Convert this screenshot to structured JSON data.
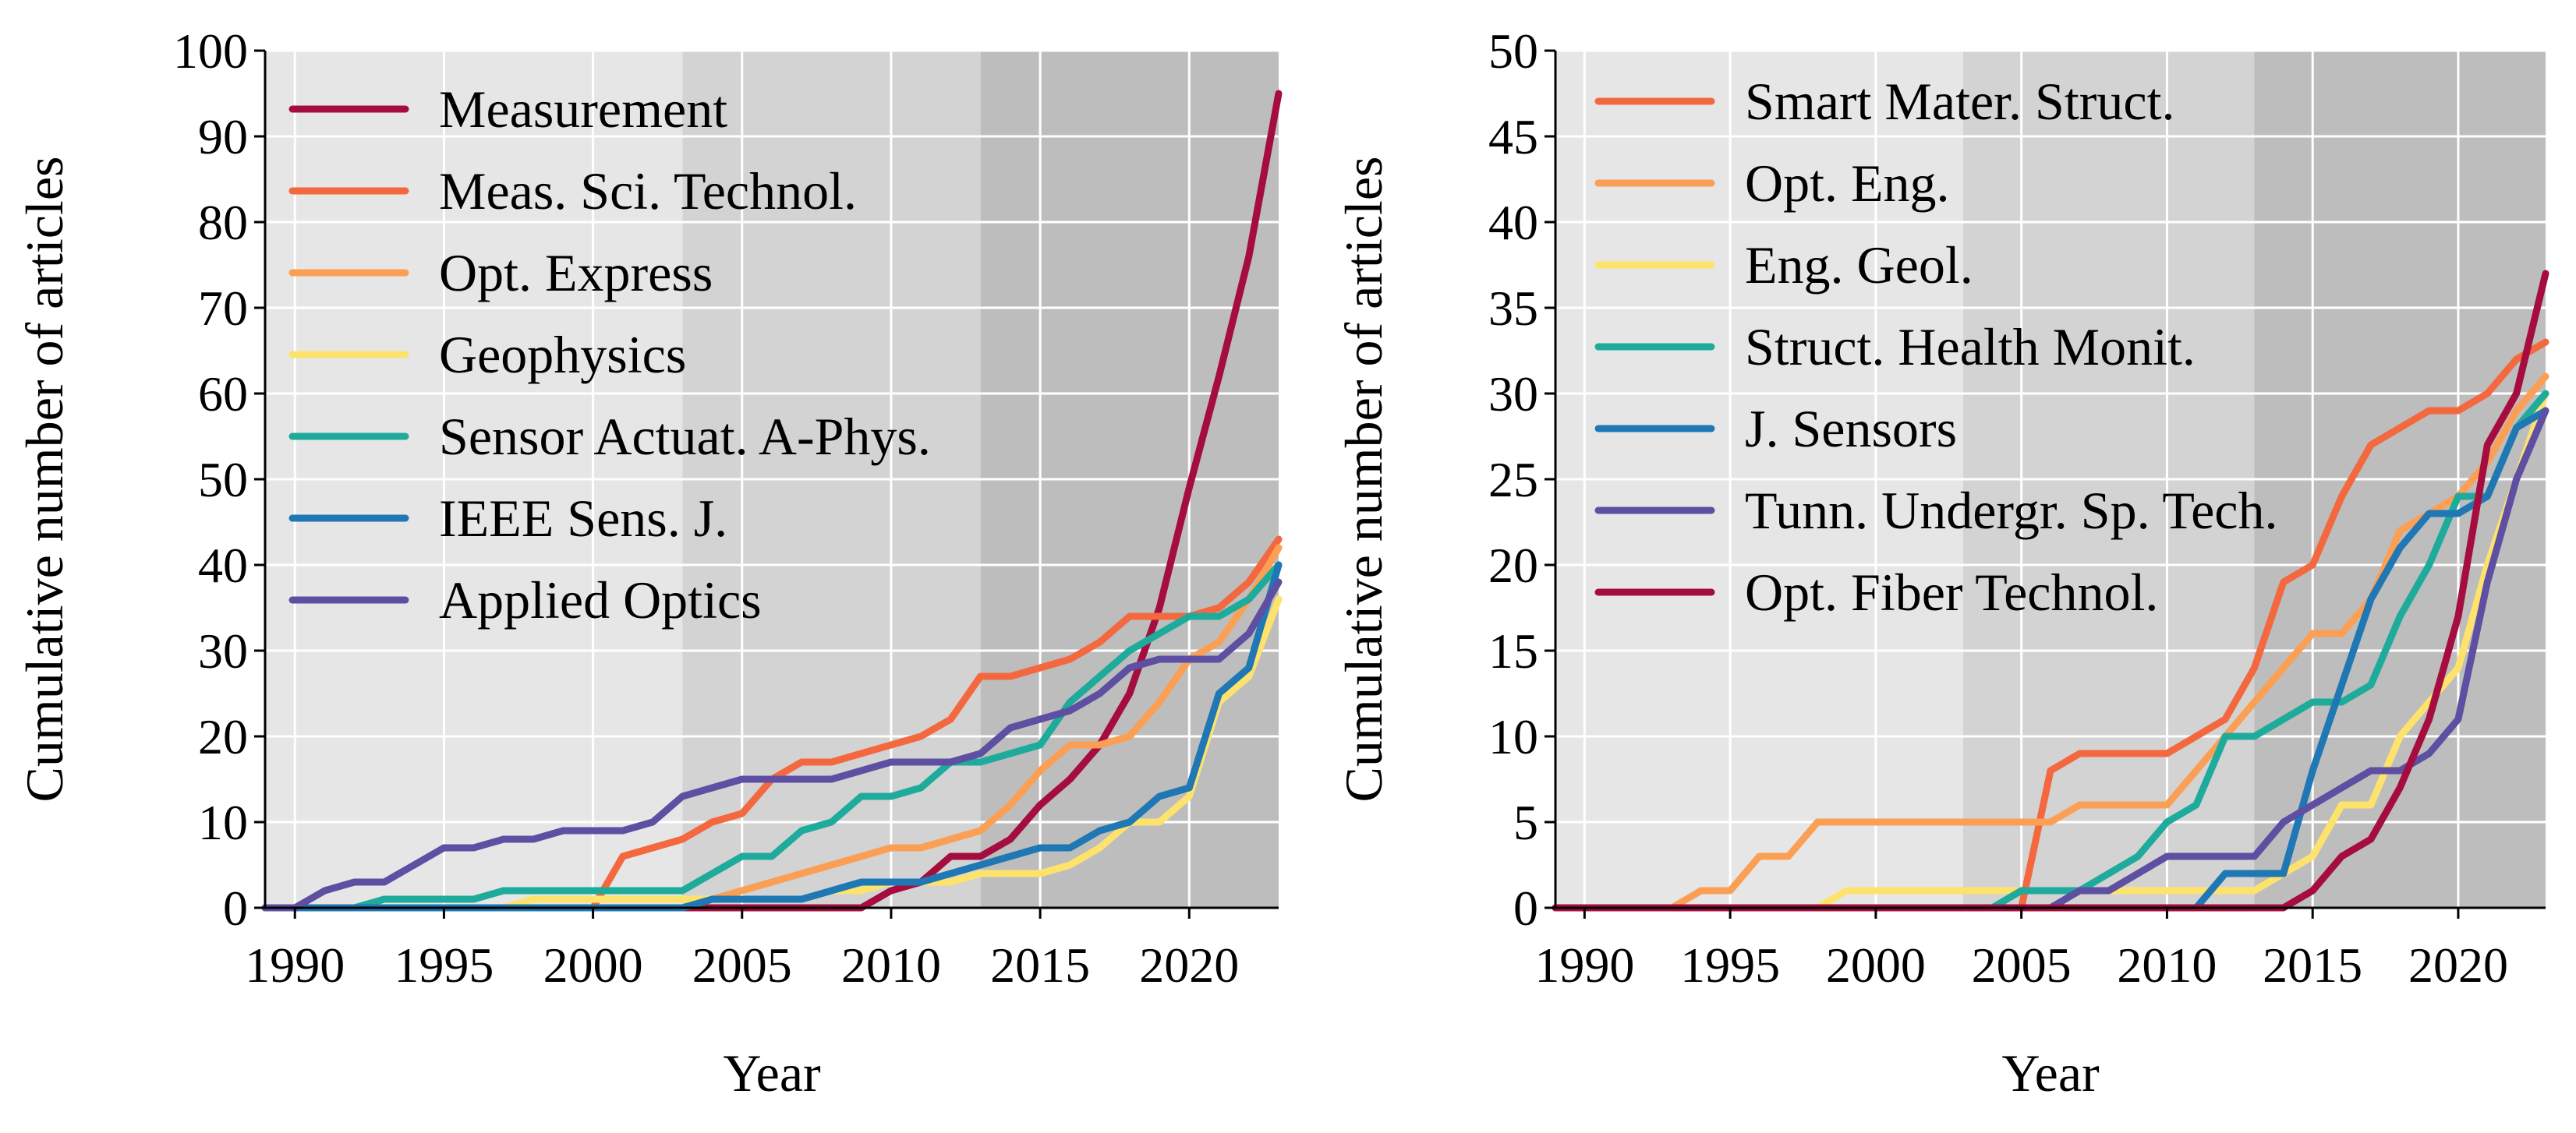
{
  "chart_data": [
    {
      "type": "line",
      "title": "",
      "xlabel": "Year",
      "ylabel": "Cumulative number of articles",
      "xlim": [
        1989,
        2023
      ],
      "ylim": [
        0,
        100
      ],
      "xticks": [
        1990,
        1995,
        2000,
        2005,
        2010,
        2015,
        2020
      ],
      "yticks": [
        0,
        10,
        20,
        30,
        40,
        50,
        60,
        70,
        80,
        90,
        100
      ],
      "grid": true,
      "background_bands": [
        {
          "from": 1989,
          "to": 2003,
          "shade": "#e6e6e6"
        },
        {
          "from": 2003,
          "to": 2013,
          "shade": "#d3d3d3"
        },
        {
          "from": 2013,
          "to": 2023,
          "shade": "#bdbdbd"
        }
      ],
      "legend_position": "top-left",
      "series": [
        {
          "name": "Measurement",
          "color": "#a50d3f",
          "x": [
            1989,
            2009,
            2010,
            2011,
            2012,
            2013,
            2014,
            2015,
            2016,
            2017,
            2018,
            2019,
            2020,
            2021,
            2022,
            2023
          ],
          "y": [
            0,
            0,
            2,
            3,
            6,
            6,
            8,
            12,
            15,
            19,
            25,
            35,
            49,
            62,
            76,
            95
          ]
        },
        {
          "name": "Meas. Sci. Technol.",
          "color": "#f4683f",
          "x": [
            1989,
            2000,
            2001,
            2002,
            2003,
            2004,
            2005,
            2006,
            2007,
            2008,
            2009,
            2010,
            2011,
            2012,
            2013,
            2014,
            2015,
            2016,
            2017,
            2018,
            2019,
            2020,
            2021,
            2022,
            2023
          ],
          "y": [
            0,
            0,
            6,
            7,
            8,
            10,
            11,
            15,
            17,
            17,
            18,
            19,
            20,
            22,
            27,
            27,
            28,
            29,
            31,
            34,
            34,
            34,
            35,
            38,
            43
          ]
        },
        {
          "name": "Opt. Express",
          "color": "#fb9f55",
          "x": [
            1989,
            2003,
            2004,
            2005,
            2006,
            2007,
            2008,
            2009,
            2010,
            2011,
            2012,
            2013,
            2014,
            2015,
            2016,
            2017,
            2018,
            2019,
            2020,
            2021,
            2022,
            2023
          ],
          "y": [
            0,
            0,
            1,
            2,
            3,
            4,
            5,
            6,
            7,
            7,
            8,
            9,
            12,
            16,
            19,
            19,
            20,
            24,
            29,
            31,
            36,
            42
          ]
        },
        {
          "name": "Geophysics",
          "color": "#fde36c",
          "x": [
            1989,
            1997,
            1998,
            2003,
            2004,
            2007,
            2008,
            2009,
            2010,
            2011,
            2012,
            2013,
            2014,
            2015,
            2016,
            2017,
            2018,
            2019,
            2020,
            2021,
            2022,
            2023
          ],
          "y": [
            0,
            0,
            1,
            1,
            1,
            1,
            2,
            2,
            3,
            3,
            3,
            4,
            4,
            4,
            5,
            7,
            10,
            10,
            13,
            24,
            27,
            36
          ]
        },
        {
          "name": "Sensor Actuat. A-Phys.",
          "color": "#1eab9c",
          "x": [
            1989,
            1992,
            1993,
            1996,
            1997,
            2003,
            2004,
            2005,
            2006,
            2007,
            2008,
            2009,
            2010,
            2011,
            2012,
            2013,
            2014,
            2015,
            2016,
            2017,
            2018,
            2019,
            2020,
            2021,
            2022,
            2023
          ],
          "y": [
            0,
            0,
            1,
            1,
            2,
            2,
            4,
            6,
            6,
            9,
            10,
            13,
            13,
            14,
            17,
            17,
            18,
            19,
            24,
            27,
            30,
            32,
            34,
            34,
            36,
            40
          ]
        },
        {
          "name": "IEEE Sens. J.",
          "color": "#1f77b4",
          "x": [
            1989,
            2003,
            2004,
            2005,
            2006,
            2007,
            2008,
            2009,
            2010,
            2011,
            2012,
            2013,
            2014,
            2015,
            2016,
            2017,
            2018,
            2019,
            2020,
            2021,
            2022,
            2023
          ],
          "y": [
            0,
            0,
            1,
            1,
            1,
            1,
            2,
            3,
            3,
            3,
            4,
            5,
            6,
            7,
            7,
            9,
            10,
            13,
            14,
            25,
            28,
            40
          ]
        },
        {
          "name": "Applied Optics",
          "color": "#5e4fa2",
          "x": [
            1989,
            1990,
            1991,
            1992,
            1993,
            1994,
            1995,
            1996,
            1997,
            1998,
            1999,
            2000,
            2001,
            2002,
            2003,
            2004,
            2005,
            2006,
            2007,
            2008,
            2009,
            2010,
            2011,
            2012,
            2013,
            2014,
            2015,
            2016,
            2017,
            2018,
            2019,
            2020,
            2021,
            2022,
            2023
          ],
          "y": [
            0,
            0,
            2,
            3,
            3,
            5,
            7,
            7,
            8,
            8,
            9,
            9,
            9,
            10,
            13,
            14,
            15,
            15,
            15,
            15,
            16,
            17,
            17,
            17,
            18,
            21,
            22,
            23,
            25,
            28,
            29,
            29,
            29,
            32,
            38
          ]
        }
      ]
    },
    {
      "type": "line",
      "title": "",
      "xlabel": "Year",
      "ylabel": "Cumulative number of articles",
      "xlim": [
        1989,
        2023
      ],
      "ylim": [
        0,
        50
      ],
      "xticks": [
        1990,
        1995,
        2000,
        2005,
        2010,
        2015,
        2020
      ],
      "yticks": [
        0,
        5,
        10,
        15,
        20,
        25,
        30,
        35,
        40,
        45,
        50
      ],
      "grid": true,
      "background_bands": [
        {
          "from": 1989,
          "to": 2003,
          "shade": "#e6e6e6"
        },
        {
          "from": 2003,
          "to": 2013,
          "shade": "#d3d3d3"
        },
        {
          "from": 2013,
          "to": 2023,
          "shade": "#bdbdbd"
        }
      ],
      "legend_position": "top-left",
      "series": [
        {
          "name": "Smart Mater. Struct.",
          "color": "#f4683f",
          "x": [
            1989,
            2005,
            2006,
            2007,
            2008,
            2009,
            2010,
            2011,
            2012,
            2013,
            2014,
            2015,
            2016,
            2017,
            2018,
            2019,
            2020,
            2021,
            2022,
            2023
          ],
          "y": [
            0,
            0,
            8,
            9,
            9,
            9,
            9,
            10,
            11,
            14,
            19,
            20,
            24,
            27,
            28,
            29,
            29,
            30,
            32,
            33
          ]
        },
        {
          "name": "Opt. Eng.",
          "color": "#fb9f55",
          "x": [
            1989,
            1993,
            1994,
            1995,
            1996,
            1997,
            1998,
            2005,
            2006,
            2007,
            2008,
            2009,
            2010,
            2011,
            2012,
            2013,
            2014,
            2015,
            2016,
            2017,
            2018,
            2019,
            2020,
            2021,
            2022,
            2023
          ],
          "y": [
            0,
            0,
            1,
            1,
            3,
            3,
            5,
            5,
            5,
            6,
            6,
            6,
            6,
            8,
            10,
            12,
            14,
            16,
            16,
            18,
            22,
            23,
            24,
            26,
            29,
            31
          ]
        },
        {
          "name": "Eng. Geol.",
          "color": "#fde36c",
          "x": [
            1989,
            1998,
            1999,
            2012,
            2013,
            2014,
            2015,
            2016,
            2017,
            2018,
            2019,
            2020,
            2021,
            2022,
            2023
          ],
          "y": [
            0,
            0,
            1,
            1,
            1,
            2,
            3,
            6,
            6,
            10,
            12,
            14,
            20,
            25,
            30
          ]
        },
        {
          "name": "Struct. Health Monit.",
          "color": "#1eab9c",
          "x": [
            1989,
            2004,
            2005,
            2006,
            2007,
            2008,
            2009,
            2010,
            2011,
            2012,
            2013,
            2014,
            2015,
            2016,
            2017,
            2018,
            2019,
            2020,
            2021,
            2022,
            2023
          ],
          "y": [
            0,
            0,
            1,
            1,
            1,
            2,
            3,
            5,
            6,
            10,
            10,
            11,
            12,
            12,
            13,
            17,
            20,
            24,
            24,
            28,
            30
          ]
        },
        {
          "name": "J. Sensors",
          "color": "#1f77b4",
          "x": [
            1989,
            2011,
            2012,
            2013,
            2014,
            2015,
            2016,
            2017,
            2018,
            2019,
            2020,
            2021,
            2022,
            2023
          ],
          "y": [
            0,
            0,
            2,
            2,
            2,
            8,
            13,
            18,
            21,
            23,
            23,
            24,
            28,
            29
          ]
        },
        {
          "name": "Tunn. Undergr. Sp. Tech.",
          "color": "#5e4fa2",
          "x": [
            1989,
            2006,
            2007,
            2008,
            2009,
            2010,
            2011,
            2012,
            2013,
            2014,
            2015,
            2016,
            2017,
            2018,
            2019,
            2020,
            2021,
            2022,
            2023
          ],
          "y": [
            0,
            0,
            1,
            1,
            2,
            3,
            3,
            3,
            3,
            5,
            6,
            7,
            8,
            8,
            9,
            11,
            19,
            25,
            29
          ]
        },
        {
          "name": "Opt. Fiber Technol.",
          "color": "#a50d3f",
          "x": [
            1989,
            2014,
            2015,
            2016,
            2017,
            2018,
            2019,
            2020,
            2021,
            2022,
            2023
          ],
          "y": [
            0,
            0,
            1,
            3,
            4,
            7,
            11,
            17,
            27,
            30,
            37
          ]
        }
      ]
    }
  ]
}
